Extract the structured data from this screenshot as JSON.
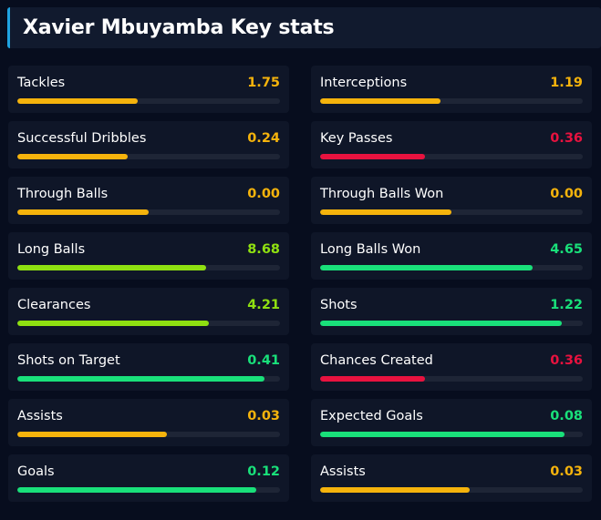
{
  "title": "Xavier Mbuyamba Key stats",
  "colors": {
    "orange": "#f5b30c",
    "red": "#e8123f",
    "lime": "#8fe011",
    "green": "#19e07a",
    "accent": "#1fa2e0"
  },
  "stats": [
    {
      "label": "Tackles",
      "value": "1.75",
      "color": "orange",
      "fill": 0.46
    },
    {
      "label": "Interceptions",
      "value": "1.19",
      "color": "orange",
      "fill": 0.46
    },
    {
      "label": "Successful Dribbles",
      "value": "0.24",
      "color": "orange",
      "fill": 0.42
    },
    {
      "label": "Key Passes",
      "value": "0.36",
      "color": "red",
      "fill": 0.4
    },
    {
      "label": "Through Balls",
      "value": "0.00",
      "color": "orange",
      "fill": 0.5
    },
    {
      "label": "Through Balls Won",
      "value": "0.00",
      "color": "orange",
      "fill": 0.5
    },
    {
      "label": "Long Balls",
      "value": "8.68",
      "color": "lime",
      "fill": 0.72
    },
    {
      "label": "Long Balls Won",
      "value": "4.65",
      "color": "green",
      "fill": 0.81
    },
    {
      "label": "Clearances",
      "value": "4.21",
      "color": "lime",
      "fill": 0.73
    },
    {
      "label": "Shots",
      "value": "1.22",
      "color": "green",
      "fill": 0.92
    },
    {
      "label": "Shots on Target",
      "value": "0.41",
      "color": "green",
      "fill": 0.94
    },
    {
      "label": "Chances Created",
      "value": "0.36",
      "color": "red",
      "fill": 0.4
    },
    {
      "label": "Assists",
      "value": "0.03",
      "color": "orange",
      "fill": 0.57
    },
    {
      "label": "Expected Goals",
      "value": "0.08",
      "color": "green",
      "fill": 0.93
    },
    {
      "label": "Goals",
      "value": "0.12",
      "color": "green",
      "fill": 0.91
    },
    {
      "label": "Assists",
      "value": "0.03",
      "color": "orange",
      "fill": 0.57
    }
  ]
}
